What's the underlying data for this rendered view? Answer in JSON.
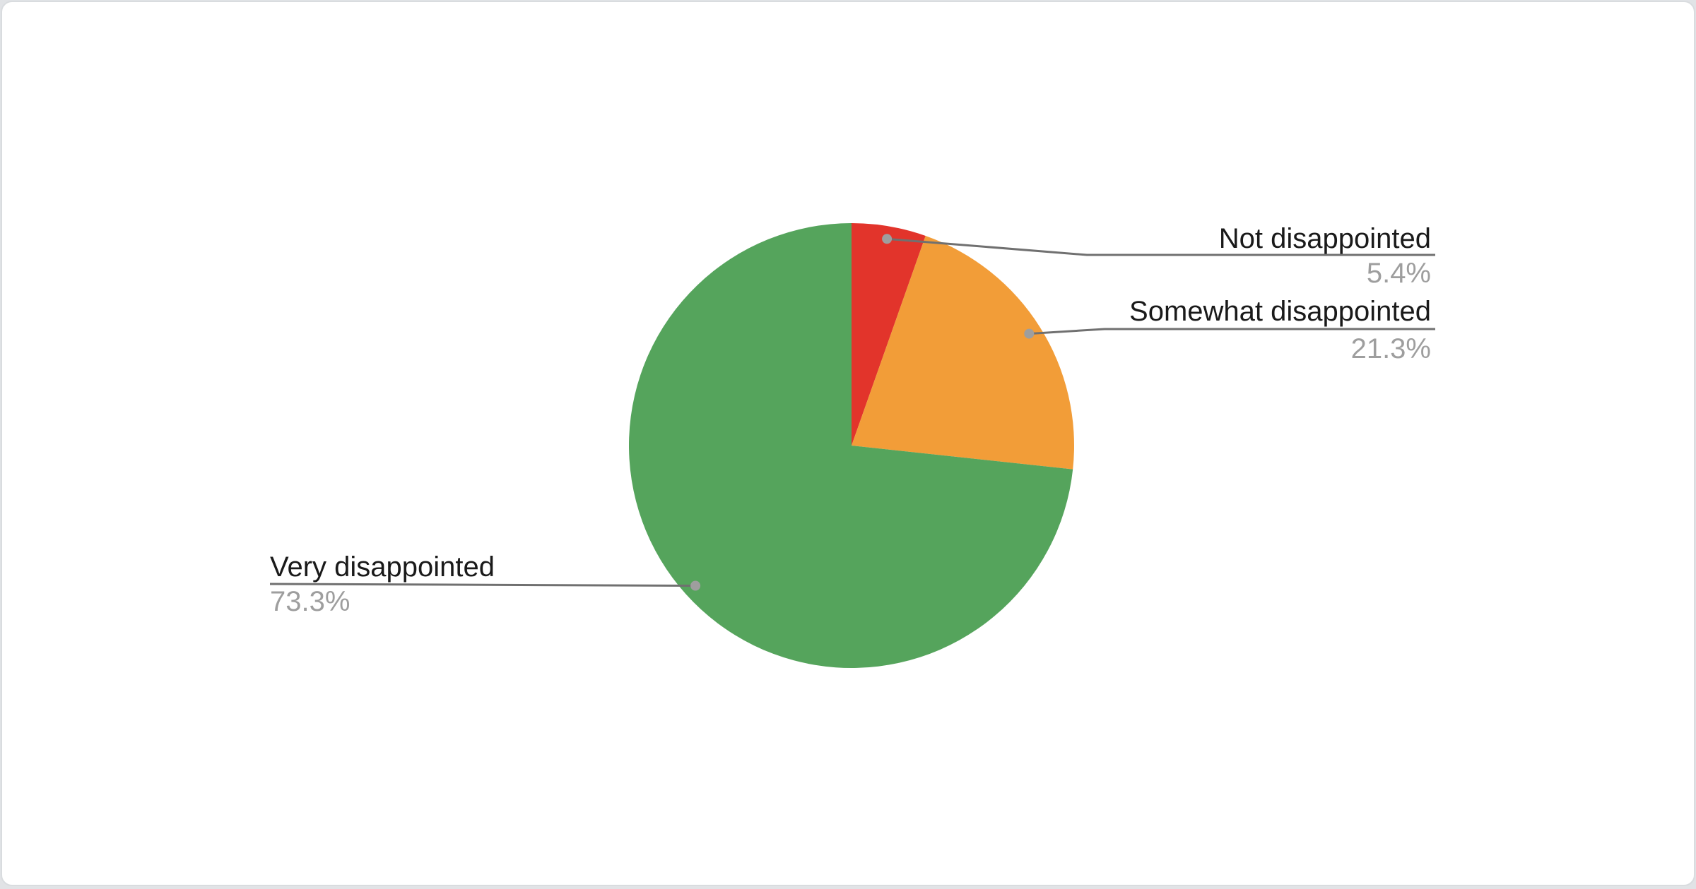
{
  "chart_data": {
    "type": "pie",
    "title": "",
    "legend_position": "none",
    "start_angle": "12-oclock",
    "direction": "clockwise",
    "categories": [
      "Not disappointed",
      "Somewhat disappointed",
      "Very disappointed"
    ],
    "values": [
      5.4,
      21.3,
      73.3
    ],
    "slices": [
      {
        "label": "Not disappointed",
        "value": 5.4,
        "percent_label": "5.4%",
        "color": "#e2342b"
      },
      {
        "label": "Somewhat disappointed",
        "value": 21.3,
        "percent_label": "21.3%",
        "color": "#f29d38"
      },
      {
        "label": "Very disappointed",
        "value": 73.3,
        "percent_label": "73.3%",
        "color": "#55a45c"
      }
    ],
    "style": {
      "label_color": "#1a1a1a",
      "percent_color": "#9e9e9e",
      "leader_line_color": "#707070",
      "leader_dot_color": "#9e9e9e",
      "card_background": "#ffffff",
      "card_border": "#d9dcdf",
      "page_background": "#e1e3e6"
    }
  }
}
